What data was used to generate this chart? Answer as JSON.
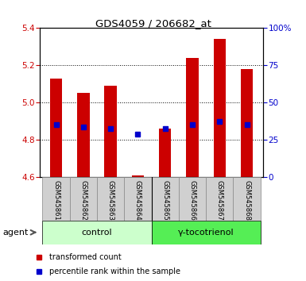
{
  "title": "GDS4059 / 206682_at",
  "samples": [
    "GSM545861",
    "GSM545862",
    "GSM545863",
    "GSM545864",
    "GSM545865",
    "GSM545866",
    "GSM545867",
    "GSM545868"
  ],
  "red_values": [
    5.13,
    5.05,
    5.09,
    4.61,
    4.86,
    5.24,
    5.34,
    5.18
  ],
  "blue_values": [
    4.88,
    4.87,
    4.86,
    4.83,
    4.86,
    4.88,
    4.9,
    4.88
  ],
  "ymin": 4.6,
  "ymax": 5.4,
  "yticks_left": [
    4.6,
    4.8,
    5.0,
    5.2,
    5.4
  ],
  "yticks_right_vals": [
    0,
    25,
    50,
    75,
    100
  ],
  "yticks_right_labels": [
    "0",
    "25",
    "50",
    "75",
    "100%"
  ],
  "bar_bottom": 4.6,
  "bar_color": "#cc0000",
  "blue_color": "#0000cc",
  "plot_bg": "#ffffff",
  "sample_box_color": "#d0d0d0",
  "sample_box_edge": "#888888",
  "control_color": "#ccffcc",
  "gamma_color": "#55ee55",
  "control_label": "control",
  "gamma_label": "γ-tocotrienol",
  "agent_label": "agent",
  "legend_red_label": "transformed count",
  "legend_blue_label": "percentile rank within the sample",
  "bar_width": 0.45
}
